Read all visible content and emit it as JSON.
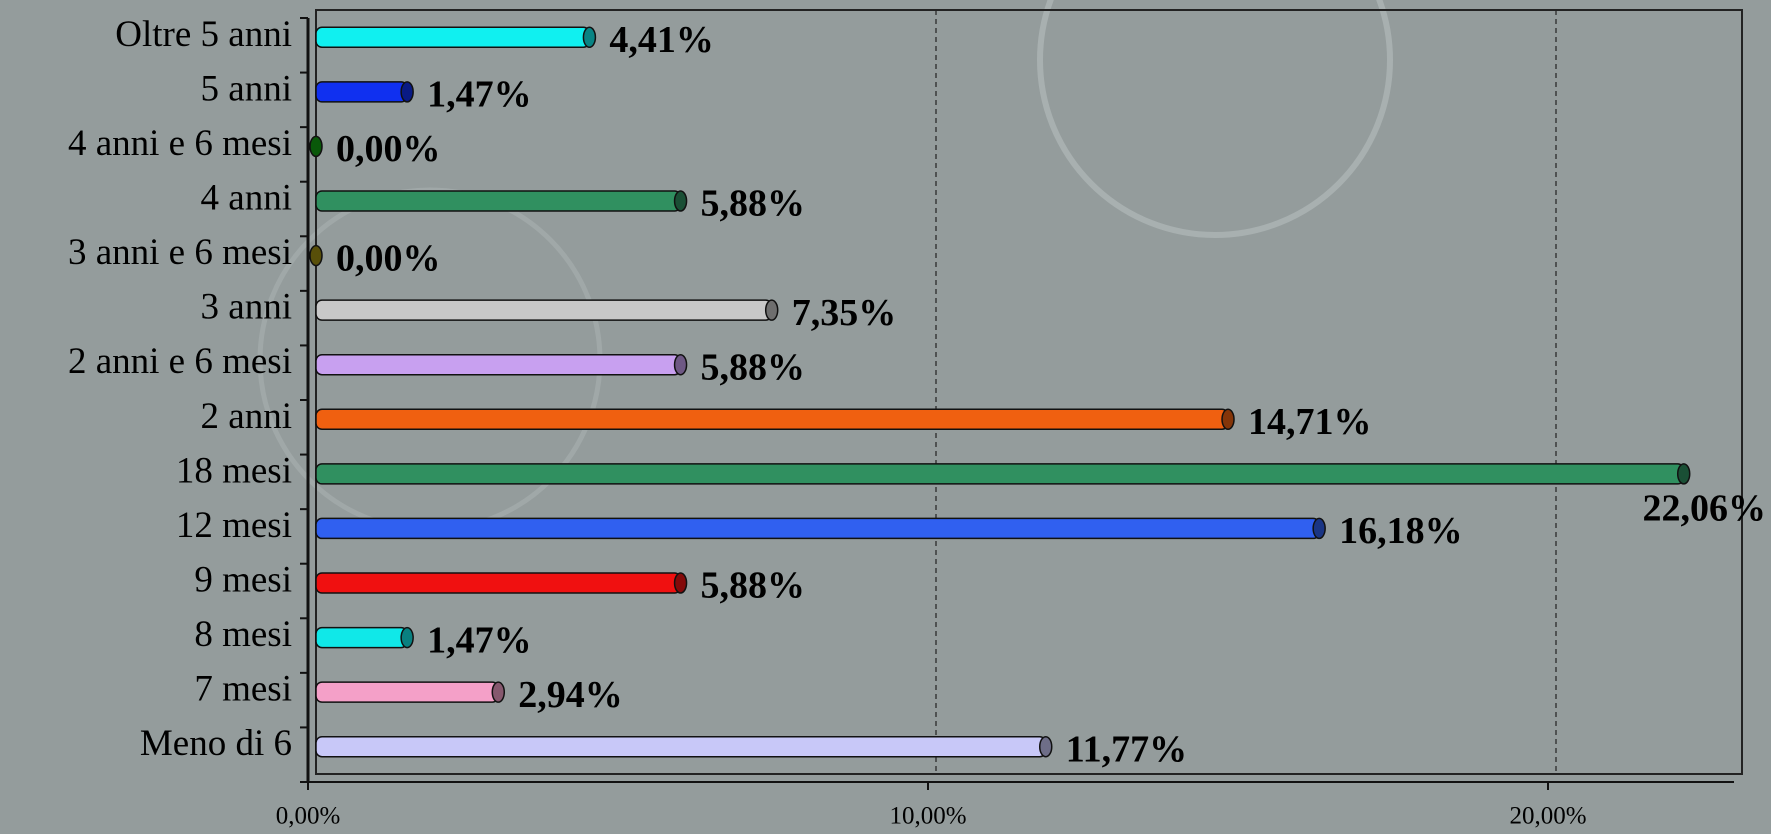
{
  "chart_data": {
    "type": "hbar",
    "categories": [
      "Meno di 6",
      "7 mesi",
      "8 mesi",
      "9 mesi",
      "12 mesi",
      "18 mesi",
      "2 anni",
      "2 anni e 6 mesi",
      "3 anni",
      "3 anni e 6 mesi",
      "4 anni",
      "4 anni e 6 mesi",
      "5 anni",
      "Oltre 5 anni"
    ],
    "values": [
      11.77,
      2.94,
      1.47,
      5.88,
      16.18,
      22.06,
      14.71,
      5.88,
      7.35,
      0,
      5.88,
      0,
      1.47,
      4.41
    ],
    "value_labels": [
      "11,77%",
      "2,94%",
      "1,47%",
      "5,88%",
      "16,18%",
      "22,06%",
      "14,71%",
      "5,88%",
      "7,35%",
      "0,00%",
      "5,88%",
      "0,00%",
      "1,47%",
      "4,41%"
    ],
    "colors": [
      "#c8c8f8",
      "#f4a0c8",
      "#10e8e8",
      "#f01010",
      "#3060f0",
      "#309060",
      "#f06010",
      "#c8a0f0",
      "#c8c8c8",
      "#a09010",
      "#309060",
      "#10a010",
      "#1030f0",
      "#10f0f0"
    ],
    "xlim": [
      0,
      23
    ],
    "xticks": [
      {
        "value": 0,
        "label": "0,00%"
      },
      {
        "value": 10,
        "label": "10,00%"
      },
      {
        "value": 20,
        "label": "20,00%"
      }
    ],
    "grid": true
  }
}
